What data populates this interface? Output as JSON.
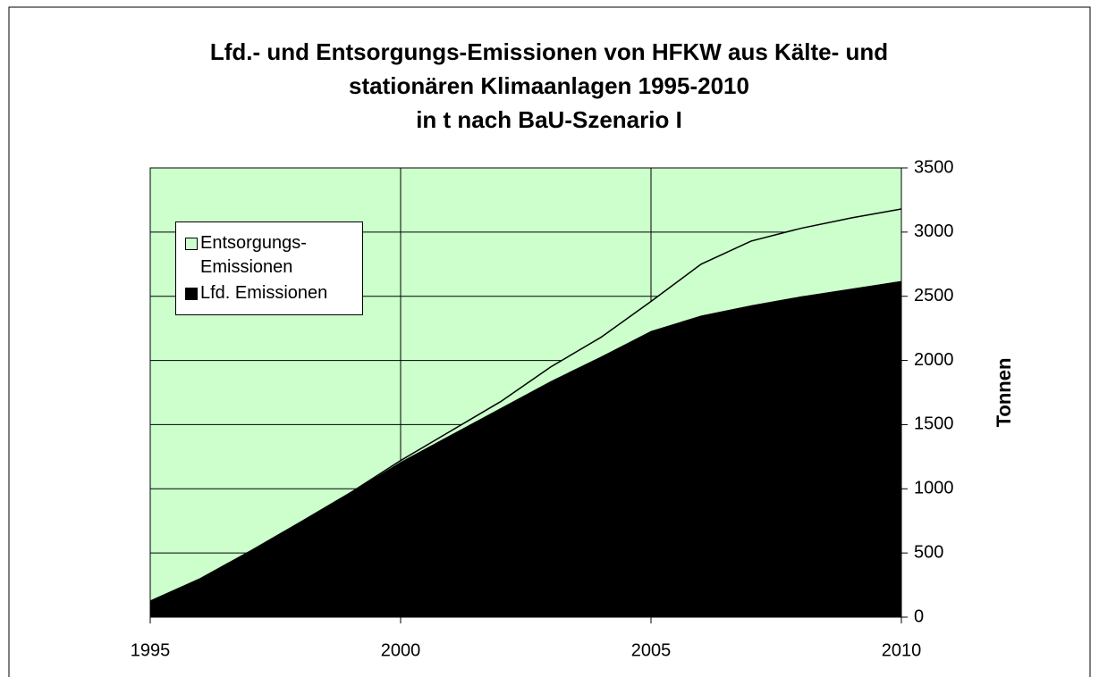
{
  "chart_data": {
    "type": "stacked_area",
    "title": [
      "Lfd.- und Entsorgungs-Emissionen von HFKW aus Kälte- und",
      "stationären Klimaanlagen 1995-2010",
      "in t nach BaU-Szenario I"
    ],
    "y_axis_label": "Tonnen",
    "x": [
      1995,
      1996,
      1997,
      1998,
      1999,
      2000,
      2001,
      2002,
      2003,
      2004,
      2005,
      2006,
      2007,
      2008,
      2009,
      2010
    ],
    "series": [
      {
        "name": "Lfd. Emissionen",
        "color": "#000000",
        "values": [
          125,
          300,
          515,
          740,
          970,
          1210,
          1420,
          1630,
          1840,
          2030,
          2230,
          2350,
          2430,
          2500,
          2560,
          2620
        ]
      },
      {
        "name": "Entsorgungs-Emissionen",
        "color": "#ccffcc",
        "values": [
          0,
          0,
          0,
          0,
          0,
          10,
          30,
          50,
          110,
          150,
          230,
          400,
          500,
          530,
          550,
          560
        ]
      }
    ],
    "plot_background": "#ccffcc",
    "xlim": [
      1995,
      2010
    ],
    "xticks": [
      1995,
      2000,
      2005,
      2010
    ],
    "ylim": [
      0,
      3500
    ],
    "yticks": [
      0,
      500,
      1000,
      1500,
      2000,
      2500,
      3000,
      3500
    ],
    "grid": true,
    "legend": "upper left"
  }
}
